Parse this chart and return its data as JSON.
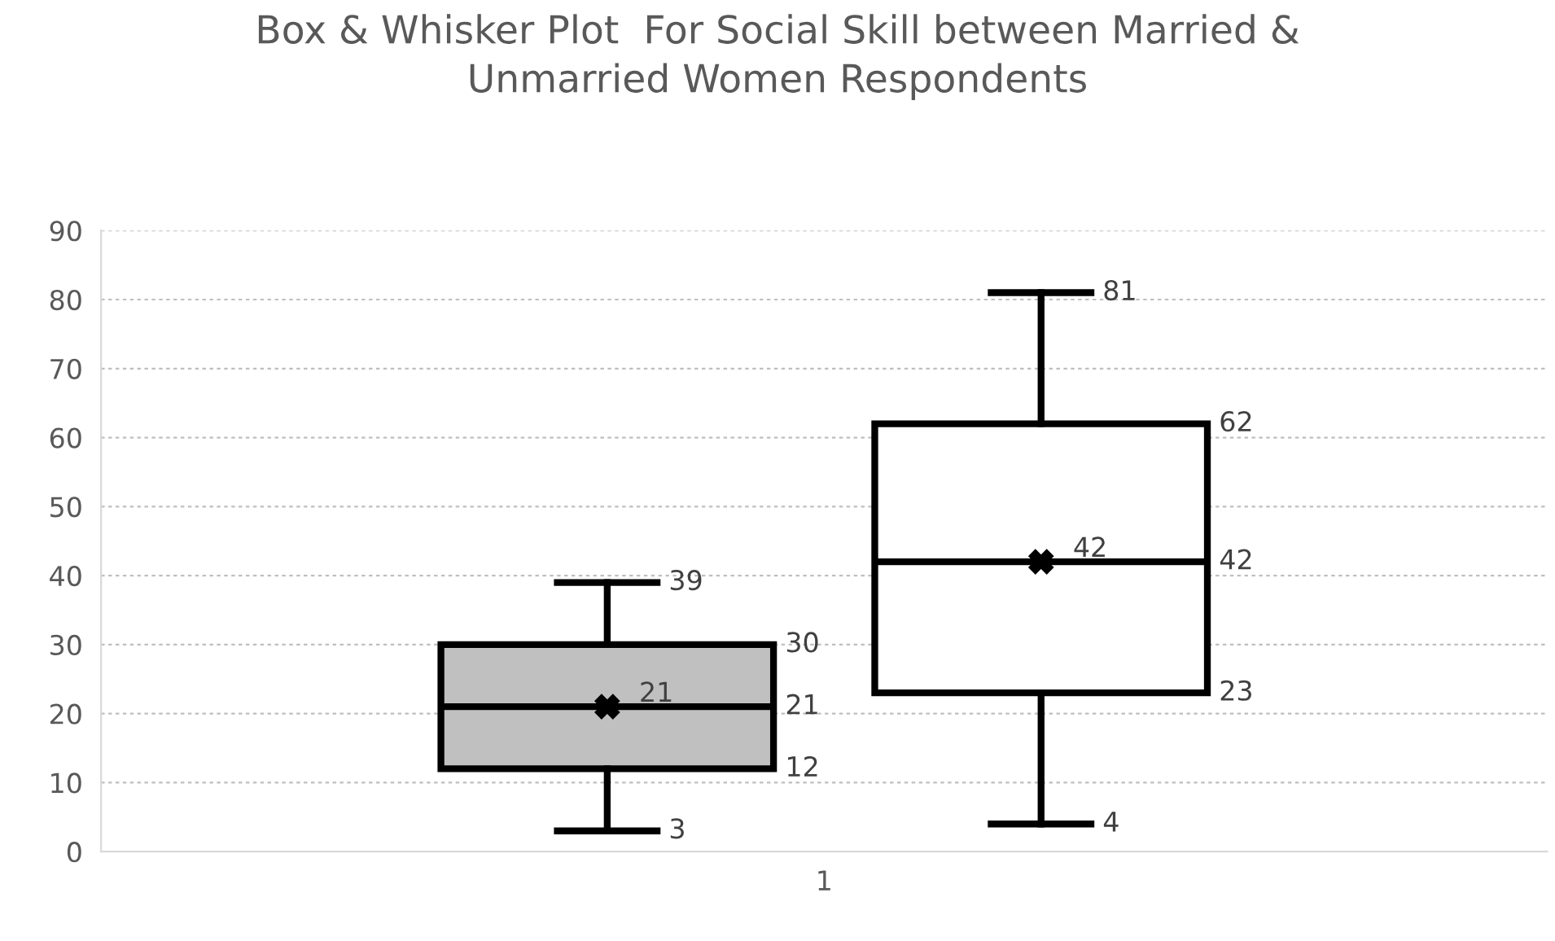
{
  "chart_data": {
    "type": "box",
    "title": "Box & Whisker Plot  For Social Skill between Married &\nUnmarried Women Respondents",
    "categories": [
      "1"
    ],
    "series": [
      {
        "color": "#c0c0c0",
        "boxes": [
          {
            "low": 3,
            "q1": 12,
            "median": 21,
            "q3": 30,
            "high": 39,
            "mean": 21
          }
        ]
      },
      {
        "color": "#ffffff",
        "boxes": [
          {
            "low": 4,
            "q1": 23,
            "median": 42,
            "q3": 62,
            "high": 81,
            "mean": 42
          }
        ]
      }
    ],
    "ylim": [
      0,
      90
    ],
    "yticks": [
      0,
      10,
      20,
      30,
      40,
      50,
      60,
      70,
      80,
      90
    ],
    "grid": "y",
    "marker": "cross",
    "annotations": [
      "3",
      "12",
      "21",
      "30",
      "39",
      "21",
      "4",
      "23",
      "42",
      "62",
      "81",
      "42"
    ]
  }
}
